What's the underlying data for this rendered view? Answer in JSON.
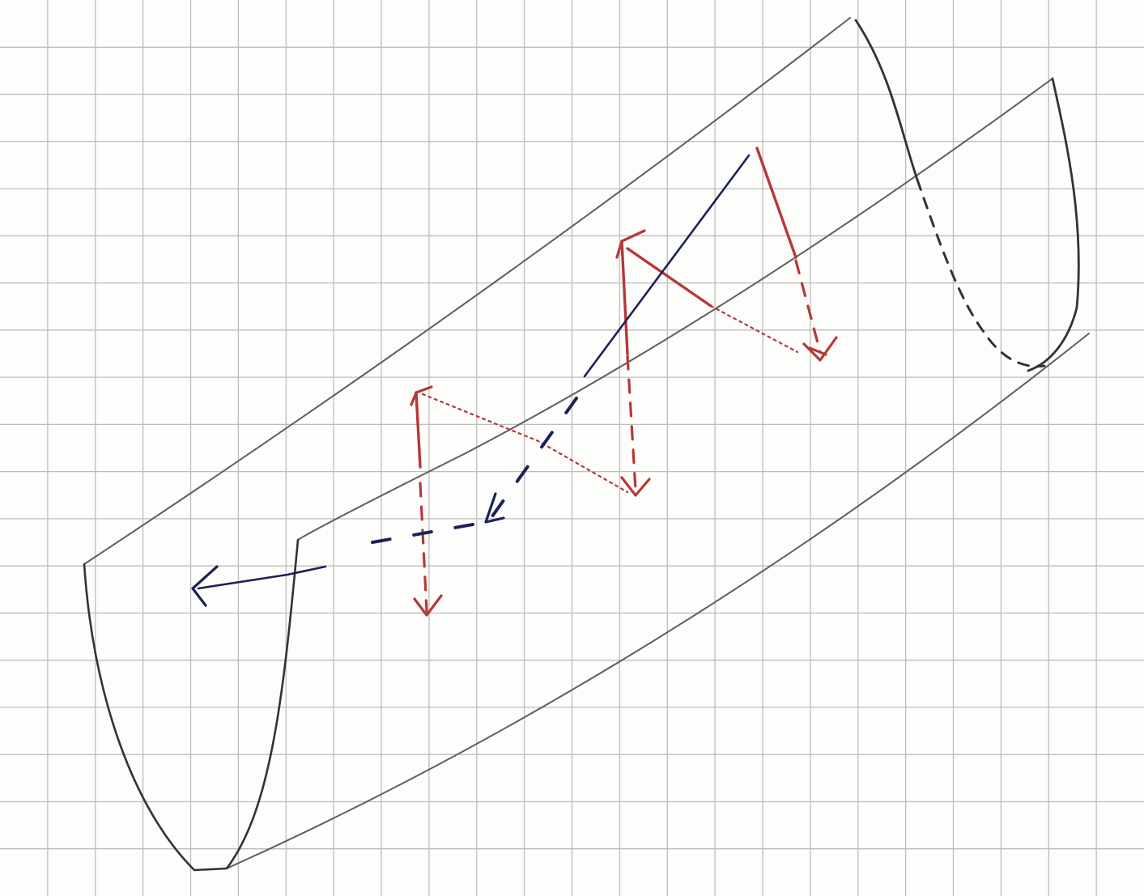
{
  "colors": {
    "paper": "#fdfdfb",
    "grid": "#bdbdbd",
    "pencil": "#5e5e5e",
    "pencil_dark": "#333333",
    "red_ink": "#b5383a",
    "blue_ink": "#1c2257"
  },
  "drawing": {
    "subject": "half-cylinder-trough",
    "grid_columns": 24,
    "grid_rows": 19
  }
}
